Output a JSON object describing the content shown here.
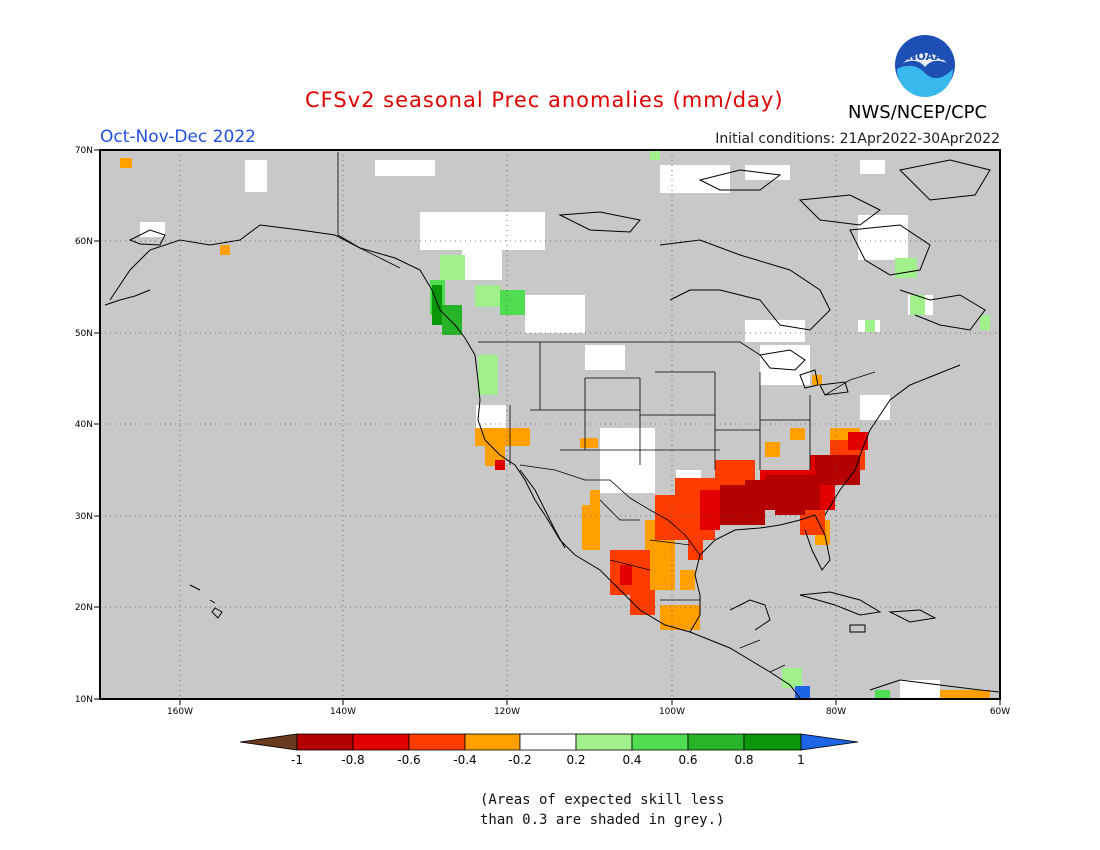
{
  "header": {
    "title": "CFSv2 seasonal Prec anomalies (mm/day)",
    "season": "Oct-Nov-Dec 2022",
    "initial_conditions": "Initial conditions: 21Apr2022-30Apr2022",
    "agency": "NWS/NCEP/CPC",
    "logo_text": "NOAA"
  },
  "map": {
    "lat_labels": [
      "70N",
      "60N",
      "50N",
      "40N",
      "30N",
      "20N",
      "10N"
    ],
    "lon_labels": [
      "160W",
      "140W",
      "120W",
      "100W",
      "80W",
      "60W"
    ],
    "background_color": "#c8c8c8"
  },
  "legend": {
    "tick_labels": [
      "-1",
      "-0.8",
      "-0.6",
      "-0.4",
      "-0.2",
      "0.2",
      "0.4",
      "0.6",
      "0.8",
      "1"
    ],
    "colors": [
      "#6b3a1e",
      "#b40000",
      "#e00000",
      "#ff3c00",
      "#ffa000",
      "#ffffff",
      "#a0f08c",
      "#50dc50",
      "#28b428",
      "#0a960a",
      "#1e64e6"
    ]
  },
  "footnote": {
    "line1": "(Areas of expected skill less",
    "line2": "than 0.3 are shaded in grey.)"
  }
}
